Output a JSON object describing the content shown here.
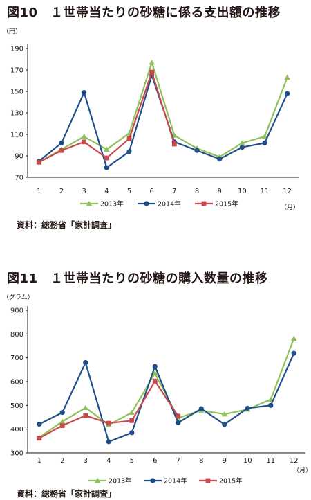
{
  "figures": [
    {
      "title": "図10　１世帯当たりの砂糖に係る支出額の推移",
      "source": "資料：総務省「家計調査」"
    },
    {
      "title": "図11　１世帯当たりの砂糖の購入数量の推移",
      "source": "資料：総務省「家計調査」"
    }
  ],
  "chart_data": [
    {
      "type": "line",
      "title": "図10　１世帯当たりの砂糖に係る支出額の推移",
      "unit_label": "（円）",
      "xunit_label": "（月）",
      "categories": [
        "1",
        "2",
        "3",
        "4",
        "5",
        "6",
        "7",
        "8",
        "9",
        "10",
        "11",
        "12"
      ],
      "ylim": [
        70,
        190
      ],
      "yticks": [
        70,
        90,
        110,
        130,
        150,
        170,
        190
      ],
      "grid": false,
      "legend": "bottom",
      "series": [
        {
          "name": "2013年",
          "color": "#8fc15a",
          "marker": "triangle",
          "values": [
            84,
            96,
            108,
            96,
            111,
            177,
            109,
            97,
            89,
            102,
            108,
            163
          ]
        },
        {
          "name": "2014年",
          "color": "#1f4e8a",
          "marker": "circle",
          "values": [
            85,
            102,
            149,
            79,
            94,
            165,
            103,
            95,
            87,
            98,
            102,
            148
          ]
        },
        {
          "name": "2015年",
          "color": "#c9484b",
          "marker": "square",
          "values": [
            84,
            95,
            103,
            88,
            106,
            168,
            101,
            null,
            null,
            null,
            null,
            null
          ]
        }
      ]
    },
    {
      "type": "line",
      "title": "図11　１世帯当たりの砂糖の購入数量の推移",
      "unit_label": "（グラム）",
      "xunit_label": "（月）",
      "categories": [
        "1",
        "2",
        "3",
        "4",
        "5",
        "6",
        "7",
        "8",
        "9",
        "10",
        "11",
        "12"
      ],
      "ylim": [
        300,
        900
      ],
      "yticks": [
        300,
        400,
        500,
        600,
        700,
        800,
        900
      ],
      "grid": false,
      "legend": "bottom",
      "series": [
        {
          "name": "2013年",
          "color": "#8fc15a",
          "marker": "triangle",
          "values": [
            365,
            432,
            490,
            418,
            470,
            635,
            447,
            479,
            463,
            483,
            525,
            781
          ]
        },
        {
          "name": "2014年",
          "color": "#1f4e8a",
          "marker": "circle",
          "values": [
            421,
            470,
            680,
            347,
            385,
            664,
            427,
            486,
            420,
            488,
            500,
            719
          ]
        },
        {
          "name": "2015年",
          "color": "#c9484b",
          "marker": "square",
          "values": [
            362,
            415,
            457,
            425,
            436,
            602,
            455,
            null,
            null,
            null,
            null,
            null
          ]
        }
      ]
    }
  ]
}
